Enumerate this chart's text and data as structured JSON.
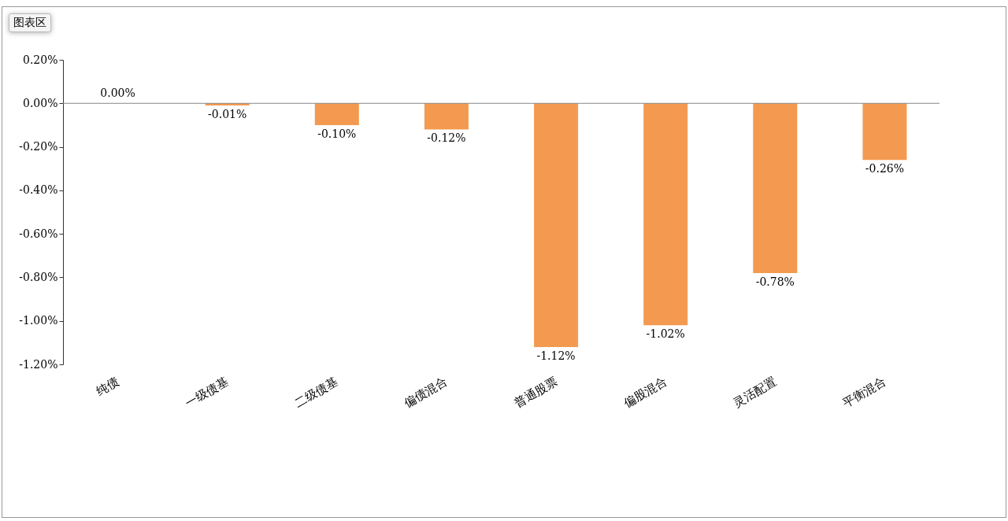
{
  "chart_data": {
    "type": "bar",
    "categories": [
      "纯债",
      "一级债基",
      "二级债基",
      "偏债混合",
      "普通股票",
      "偏股混合",
      "灵活配置",
      "平衡混合"
    ],
    "values": [
      0.0,
      -0.01,
      -0.1,
      -0.12,
      -1.12,
      -1.02,
      -0.78,
      -0.26
    ],
    "value_labels": [
      "0.00%",
      "-0.01%",
      "-0.10%",
      "-0.12%",
      "-1.12%",
      "-1.02%",
      "-0.78%",
      "-0.26%"
    ],
    "color": "#f39a50",
    "ylim": [
      -1.2,
      0.2
    ],
    "yticks": [
      {
        "value": 0.2,
        "label": "0.20%"
      },
      {
        "value": 0,
        "label": "0.00%"
      },
      {
        "value": -0.2,
        "label": "-0.20%"
      },
      {
        "value": -0.4,
        "label": "-0.40%"
      },
      {
        "value": -0.6,
        "label": "-0.60%"
      },
      {
        "value": -0.8,
        "label": "-0.80%"
      },
      {
        "value": -1.0,
        "label": "-1.00%"
      },
      {
        "value": -1.2,
        "label": "-1.20%"
      }
    ],
    "annotations": [
      "图表区"
    ]
  }
}
